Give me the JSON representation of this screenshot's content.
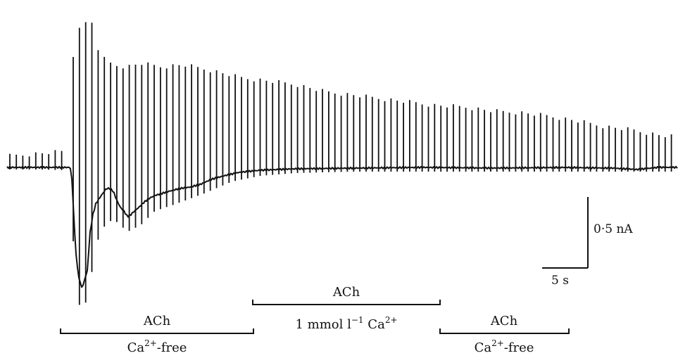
{
  "scale_bar": {
    "current_label": "0·5 nA",
    "time_label": "5 s"
  },
  "brackets": [
    {
      "id": "first",
      "top": "ACh",
      "bottom_base": "Ca",
      "bottom_sup": "2+",
      "bottom_tail": "-free"
    },
    {
      "id": "middle",
      "top": "ACh",
      "bottom_prefix": "1 mmol l",
      "bottom_prefix_sup": "−1",
      "bottom_base": " Ca",
      "bottom_sup": "2+",
      "bottom_tail": ""
    },
    {
      "id": "last",
      "top": "ACh",
      "bottom_base": "Ca",
      "bottom_sup": "2+",
      "bottom_tail": "-free"
    }
  ],
  "trace": {
    "stroke": "#111111"
  }
}
